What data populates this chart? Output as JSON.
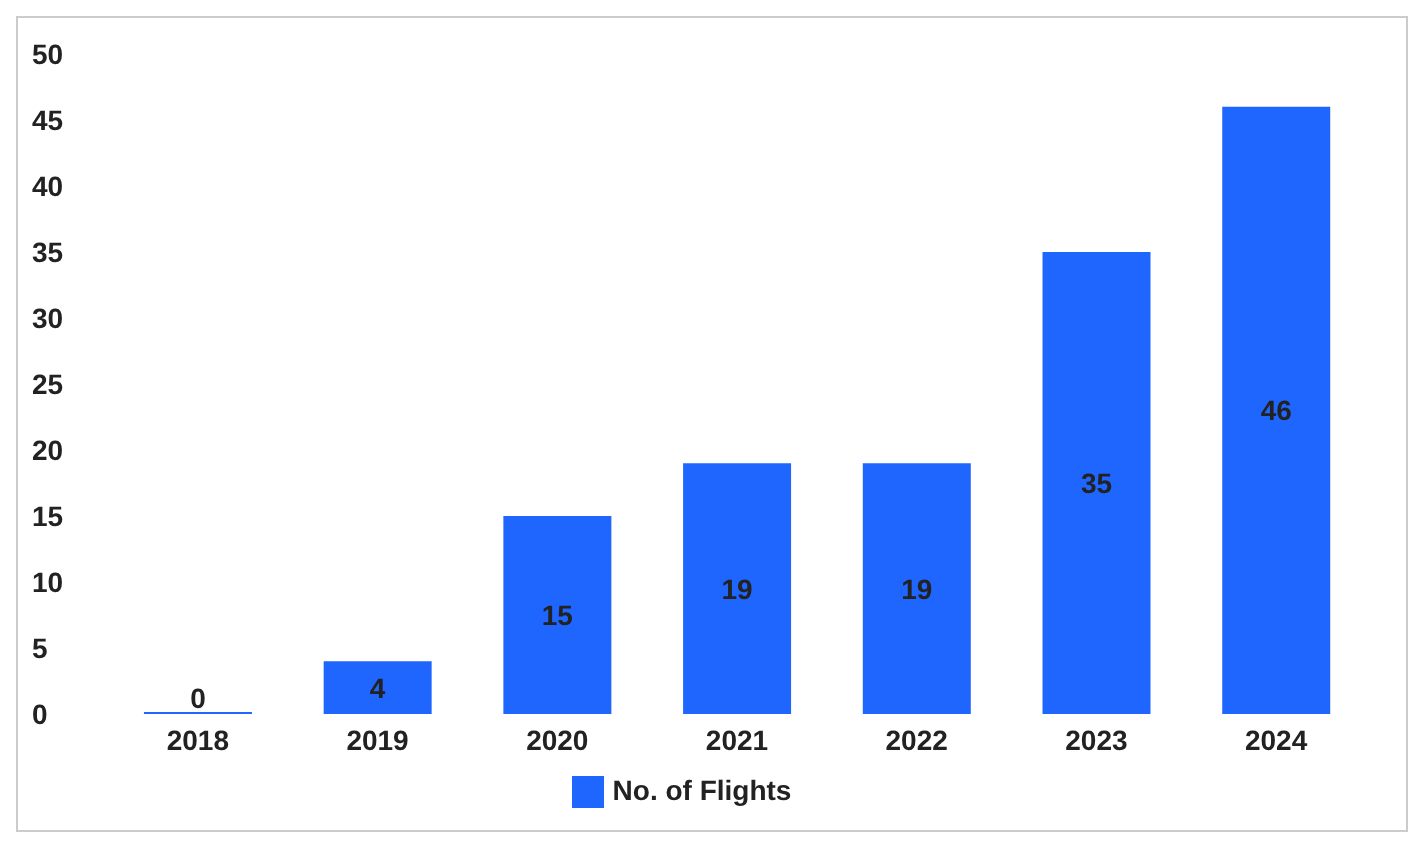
{
  "chart_data": {
    "type": "bar",
    "categories": [
      "2018",
      "2019",
      "2020",
      "2021",
      "2022",
      "2023",
      "2024"
    ],
    "series": [
      {
        "name": "No. of Flights",
        "color": "#1f66ff",
        "values": [
          0,
          4,
          15,
          19,
          19,
          35,
          46
        ]
      }
    ],
    "ylim": [
      0,
      50
    ],
    "yticks": [
      0,
      5,
      10,
      15,
      20,
      25,
      30,
      35,
      40,
      45,
      50
    ],
    "grid": false,
    "legend": "bottom",
    "data_labels": true
  }
}
